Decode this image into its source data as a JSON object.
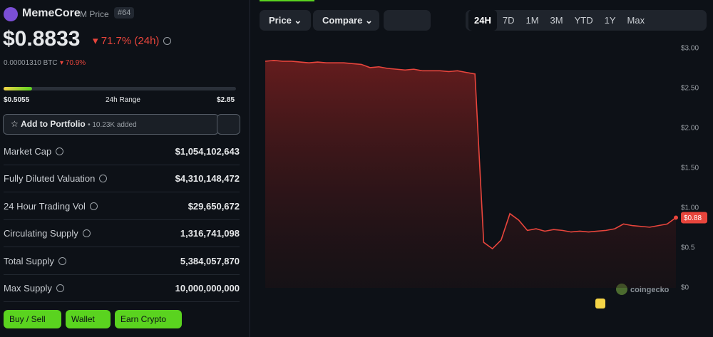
{
  "header": {
    "name": "MemeCore",
    "symbol": "M Price",
    "rank": "#64"
  },
  "price": {
    "value": "$0.8833",
    "change": "71.7% (24h)",
    "btc": "0.00001310 BTC",
    "btc_change": "70.9%"
  },
  "range": {
    "low": "$0.5055",
    "label": "24h Range",
    "high": "$2.85"
  },
  "portfolio": {
    "button": "Add to Portfolio",
    "added": "• 10.23K added"
  },
  "stats": [
    {
      "label": "Market Cap",
      "value": "$1,054,102,643"
    },
    {
      "label": "Fully Diluted Valuation",
      "value": "$4,310,148,472"
    },
    {
      "label": "24 Hour Trading Vol",
      "value": "$29,650,672"
    },
    {
      "label": "Circulating Supply",
      "value": "1,316,741,098"
    },
    {
      "label": "Total Supply",
      "value": "5,384,057,870"
    },
    {
      "label": "Max Supply",
      "value": "10,000,000,000"
    }
  ],
  "actions": [
    "Buy / Sell",
    "Wallet",
    "Earn Crypto"
  ],
  "toolbar": {
    "price": "Price",
    "compare": "Compare",
    "ranges": [
      "24H",
      "7D",
      "1M",
      "3M",
      "YTD",
      "1Y",
      "Max"
    ]
  },
  "chart_data": {
    "type": "line",
    "color": "#e8453c",
    "grid": false,
    "watermark": "coingecko",
    "values": [
      2.84,
      2.85,
      2.84,
      2.84,
      2.83,
      2.82,
      2.83,
      2.82,
      2.82,
      2.82,
      2.81,
      2.8,
      2.76,
      2.77,
      2.75,
      2.74,
      2.73,
      2.74,
      2.72,
      2.72,
      2.72,
      2.71,
      2.72,
      2.7,
      2.68,
      0.57,
      0.49,
      0.6,
      0.93,
      0.85,
      0.72,
      0.74,
      0.71,
      0.73,
      0.72,
      0.7,
      0.71,
      0.7,
      0.71,
      0.72,
      0.74,
      0.8,
      0.78,
      0.77,
      0.76,
      0.78,
      0.8,
      0.88
    ],
    "ylim": [
      0,
      3
    ],
    "yticks": [
      {
        "value": 0,
        "label": "$0"
      },
      {
        "value": 0.5,
        "label": "$0.5"
      },
      {
        "value": 1,
        "label": "$1.00"
      },
      {
        "value": 1.5,
        "label": "$1.50"
      },
      {
        "value": 2,
        "label": "$2.00"
      },
      {
        "value": 2.5,
        "label": "$2.50"
      },
      {
        "value": 3,
        "label": "$3.00"
      }
    ],
    "current_price": {
      "value": 0.88,
      "label": "$0.88"
    }
  }
}
